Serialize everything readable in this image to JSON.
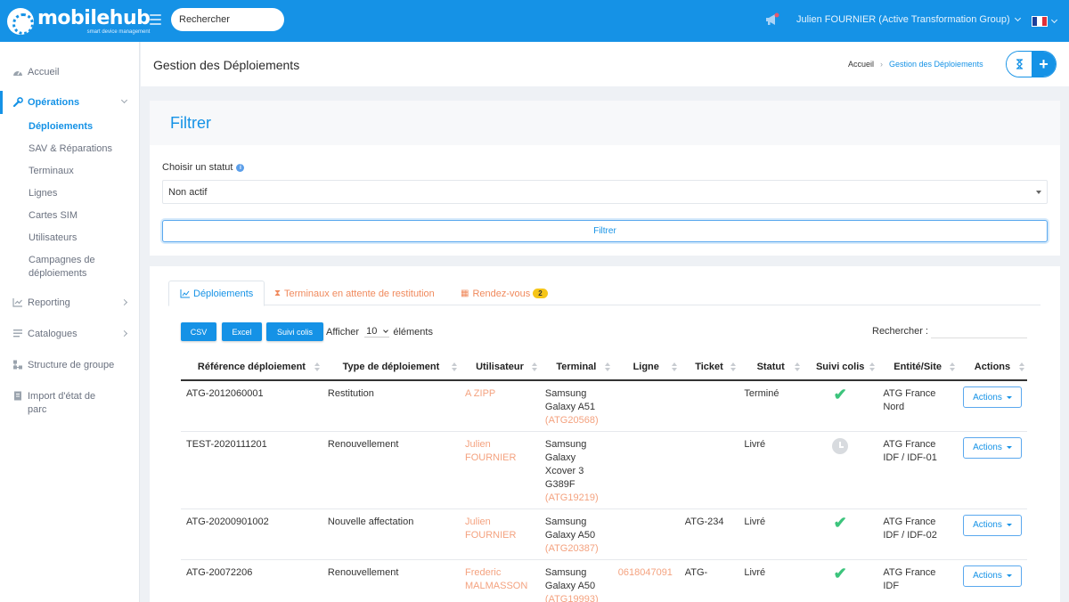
{
  "brand": {
    "name": "mobilehub",
    "tagline": "smart device management",
    "primary_color": "#1592e6",
    "accent_color": "#f4a27f"
  },
  "topbar": {
    "search_placeholder": "Rechercher",
    "user": "Julien FOURNIER (Active Transformation Group)",
    "language_flag": "fr-flag-icon",
    "notification_icon": "megaphone-icon"
  },
  "sidebar": {
    "home": "Accueil",
    "operations": "Opérations",
    "operations_items": [
      "Déploiements",
      "SAV & Réparations",
      "Terminaux",
      "Lignes",
      "Cartes SIM",
      "Utilisateurs",
      "Campagnes de déploiements"
    ],
    "reporting": "Reporting",
    "catalogues": "Catalogues",
    "structure": "Structure de groupe",
    "import": "Import d'état de parc"
  },
  "header": {
    "title": "Gestion des Déploiements",
    "breadcrumb": [
      "Accueil",
      "Gestion des Déploiements"
    ],
    "add_label": "+"
  },
  "filter": {
    "title": "Filtrer",
    "status_label": "Choisir un statut",
    "status_value": "Non actif",
    "button": "Filtrer"
  },
  "tabs": {
    "deployments": "Déploiements",
    "pending_terminals": "Terminaux en attente de restitution",
    "appointments": "Rendez-vous",
    "appointments_count": "2"
  },
  "toolbar": {
    "csv": "CSV",
    "excel": "Excel",
    "tracking": "Suivi colis",
    "show_prefix": "Afficher",
    "page_size": "10",
    "show_suffix": "éléments",
    "search_label": "Rechercher :"
  },
  "table": {
    "columns": [
      "Référence déploiement",
      "Type de déploiement",
      "Utilisateur",
      "Terminal",
      "Ligne",
      "Ticket",
      "Statut",
      "Suivi colis",
      "Entité/Site",
      "Actions"
    ],
    "action_label": "Actions",
    "rows": [
      {
        "ref": "ATG-2012060001",
        "type": "Restitution",
        "user": "A ZIPP",
        "terminal": "Samsung Galaxy A51",
        "terminal_id": "(ATG20568)",
        "line": "",
        "ticket": "",
        "status": "Terminé",
        "tracking": "delivered",
        "entity": "ATG France Nord"
      },
      {
        "ref": "TEST-2020111201",
        "type": "Renouvellement",
        "user": "Julien FOURNIER",
        "terminal": "Samsung Galaxy Xcover 3 G389F",
        "terminal_id": "(ATG19219)",
        "line": "",
        "ticket": "",
        "status": "Livré",
        "tracking": "pending",
        "entity": "ATG France IDF / IDF-01"
      },
      {
        "ref": "ATG-20200901002",
        "type": "Nouvelle affectation",
        "user": "Julien FOURNIER",
        "terminal": "Samsung Galaxy A50",
        "terminal_id": "(ATG20387)",
        "line": "",
        "ticket": "ATG-234",
        "status": "Livré",
        "tracking": "delivered",
        "entity": "ATG France IDF / IDF-02"
      },
      {
        "ref": "ATG-20072206",
        "type": "Renouvellement",
        "user": "Frederic MALMASSON",
        "terminal": "Samsung Galaxy A50",
        "terminal_id": "(ATG19993)",
        "line": "0618047091",
        "ticket": "ATG-",
        "status": "Livré",
        "tracking": "delivered",
        "entity": "ATG France IDF"
      }
    ]
  }
}
